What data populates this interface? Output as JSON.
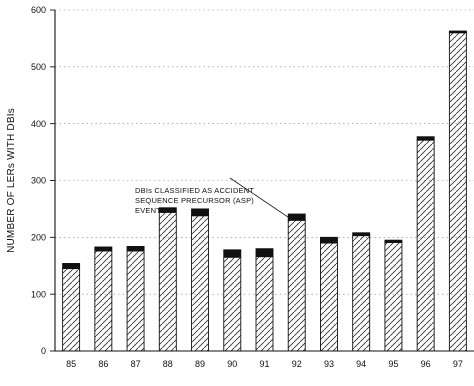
{
  "chart_data": {
    "type": "bar",
    "title": "",
    "xlabel": "",
    "ylabel": "NUMBER OF LERs WITH DBIs",
    "ylim": [
      0,
      600
    ],
    "yticks": [
      0,
      100,
      200,
      300,
      400,
      500,
      600
    ],
    "grid": "horizontal dotted",
    "categories": [
      "85",
      "86",
      "87",
      "88",
      "89",
      "90",
      "91",
      "92",
      "93",
      "94",
      "95",
      "96",
      "97"
    ],
    "series": [
      {
        "name": "",
        "pattern": "hatched",
        "values": [
          145,
          176,
          176,
          244,
          238,
          165,
          166,
          230,
          190,
          203,
          191,
          371,
          560
        ]
      },
      {
        "name": "DBIs CLASSIFIED AS ACCIDENT SEQUENCE PRECURSOR (ASP) EVENTS",
        "pattern": "solid black",
        "values": [
          9,
          7,
          8,
          8,
          12,
          13,
          14,
          11,
          10,
          5,
          4,
          6,
          3
        ]
      }
    ],
    "totals": [
      154,
      183,
      184,
      252,
      250,
      178,
      180,
      241,
      200,
      208,
      195,
      377,
      563
    ],
    "annotation": {
      "lines": [
        "DBIs CLASSIFIED AS ACCIDENT",
        "SEQUENCE PRECURSOR (ASP)",
        "EVENTS"
      ],
      "points_to": "92"
    }
  },
  "colors": {
    "bar_fill": "#ffffff",
    "bar_stroke": "#111111",
    "hatch": "#333333",
    "asp_fill": "#111111",
    "grid": "#888888"
  }
}
